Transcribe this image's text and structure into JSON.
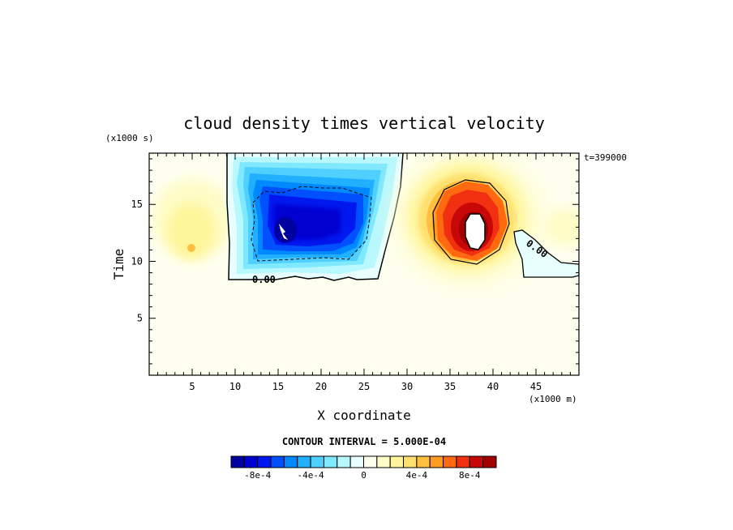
{
  "chart_data": {
    "type": "heatmap",
    "title": "cloud density times vertical velocity",
    "xlabel": "X coordinate",
    "ylabel": "Time",
    "x_unit": "(x1000 m)",
    "y_unit": "(x1000 s)",
    "timestamp_label": "t=399000",
    "contour_interval_label": "CONTOUR INTERVAL = 5.000E-04",
    "contour_label": "0.00",
    "xlim": [
      0,
      50
    ],
    "ylim": [
      0,
      19.5
    ],
    "x_ticks": [
      5,
      10,
      15,
      20,
      25,
      30,
      35,
      40,
      45
    ],
    "y_ticks": [
      5,
      10,
      15
    ],
    "colorbar": {
      "tick_labels": [
        "-8e-4",
        "-4e-4",
        "0",
        "4e-4",
        "8e-4"
      ],
      "tick_values": [
        -0.0008,
        -0.0004,
        0,
        0.0004,
        0.0008
      ],
      "levels": [
        -0.001,
        -0.0009,
        -0.0008,
        -0.0007,
        -0.0006,
        -0.0005,
        -0.0004,
        -0.0003,
        -0.0002,
        -0.0001,
        0,
        0.0001,
        0.0002,
        0.0003,
        0.0004,
        0.0005,
        0.0006,
        0.0007,
        0.0008,
        0.0009,
        0.001
      ],
      "colors": [
        "#0000a0",
        "#0000d0",
        "#0018f0",
        "#0050ff",
        "#0088ff",
        "#20b0ff",
        "#50d0ff",
        "#80e8ff",
        "#b8f8ff",
        "#e8ffff",
        "#fffff0",
        "#fffcc8",
        "#fff59a",
        "#ffe070",
        "#ffc040",
        "#ff9c20",
        "#ff6a10",
        "#f03010",
        "#c80808",
        "#a00000"
      ]
    },
    "features": [
      {
        "name": "negative cell",
        "x_range": [
          9.5,
          30
        ],
        "y_range": [
          8.5,
          19.5
        ],
        "min_value": -0.0011,
        "center": [
          16,
          13
        ]
      },
      {
        "name": "positive cell",
        "x_range": [
          30,
          43
        ],
        "y_range": [
          9.5,
          19
        ],
        "max_value": 0.0011,
        "center": [
          38,
          13
        ]
      },
      {
        "name": "weak positive area",
        "x_range": [
          0.5,
          9
        ],
        "y_range": [
          9.5,
          17.5
        ],
        "max_value": 0.0003,
        "center": [
          5,
          11.5
        ]
      },
      {
        "name": "weak negative area",
        "x_range": [
          42,
          50
        ],
        "y_range": [
          9,
          13
        ],
        "min_value": -0.0001
      }
    ]
  }
}
